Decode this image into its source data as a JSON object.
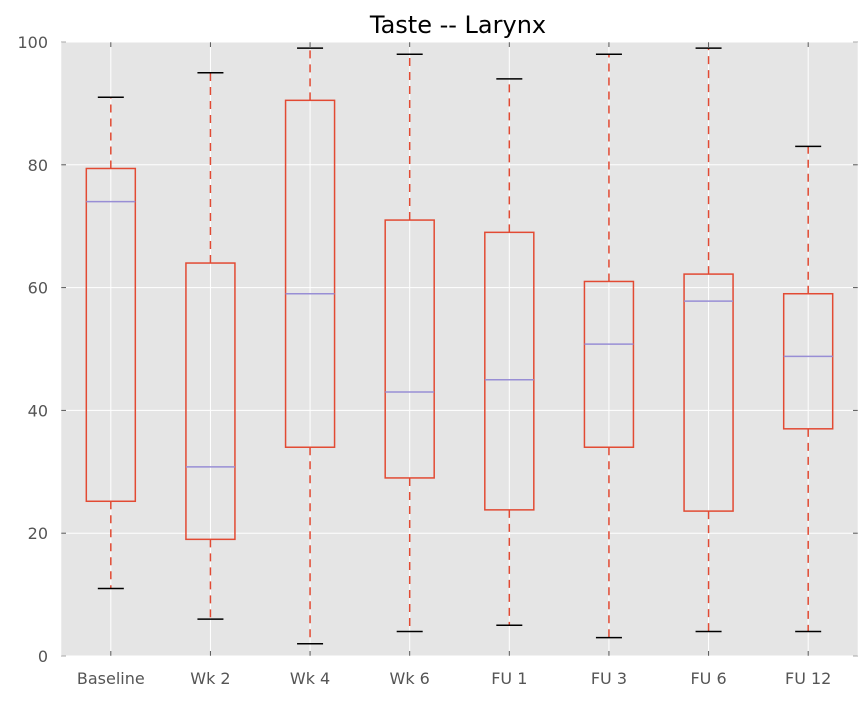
{
  "chart_data": {
    "type": "box",
    "title": "Taste -- Larynx",
    "xlabel": "",
    "ylabel": "",
    "ylim": [
      0,
      100
    ],
    "yticks": [
      0,
      20,
      40,
      60,
      80,
      100
    ],
    "grid": true,
    "categories": [
      "Baseline",
      "Wk 2",
      "Wk 4",
      "Wk 6",
      "FU 1",
      "FU 3",
      "FU 6",
      "FU 12"
    ],
    "boxes": [
      {
        "min": 11,
        "q1": 25.2,
        "median": 74,
        "q3": 79.4,
        "max": 91
      },
      {
        "min": 6,
        "q1": 19,
        "median": 30.8,
        "q3": 64,
        "max": 95
      },
      {
        "min": 2,
        "q1": 34,
        "median": 59,
        "q3": 90.5,
        "max": 99
      },
      {
        "min": 4,
        "q1": 29,
        "median": 43,
        "q3": 71,
        "max": 98
      },
      {
        "min": 5,
        "q1": 23.8,
        "median": 45,
        "q3": 69,
        "max": 94
      },
      {
        "min": 3,
        "q1": 34,
        "median": 50.8,
        "q3": 61,
        "max": 98
      },
      {
        "min": 4,
        "q1": 23.6,
        "median": 57.8,
        "q3": 62.2,
        "max": 99
      },
      {
        "min": 4,
        "q1": 37,
        "median": 48.8,
        "q3": 59,
        "max": 83
      }
    ],
    "colors": {
      "plot_background": "#e5e5e5",
      "grid": "#ffffff",
      "box": "#e24a33",
      "whisker": "#e24a33",
      "median": "#988ed5",
      "cap": "#000000"
    }
  }
}
